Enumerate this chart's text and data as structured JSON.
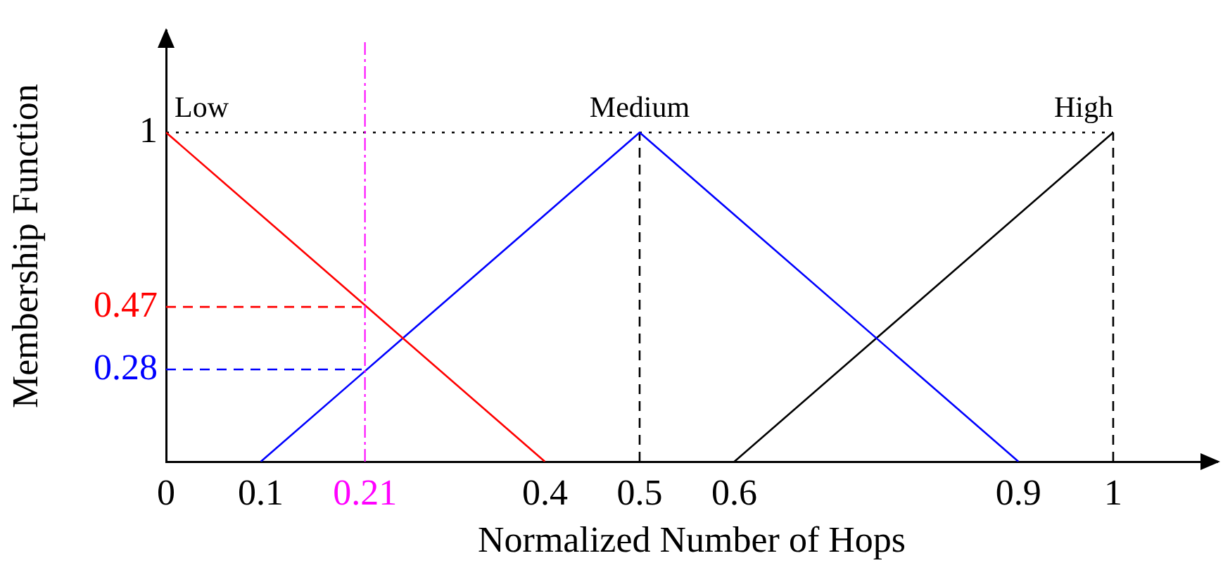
{
  "chart_data": {
    "type": "line",
    "xlabel": "Normalized Number of Hops",
    "ylabel": "Membership Function",
    "series": [
      {
        "name": "Low",
        "color": "#ff0000",
        "x": [
          0,
          0.4
        ],
        "values": [
          1,
          0
        ]
      },
      {
        "name": "Medium",
        "color": "#0000ff",
        "x": [
          0.1,
          0.5,
          0.9
        ],
        "values": [
          0,
          1,
          0
        ]
      },
      {
        "name": "High",
        "color": "#000000",
        "x": [
          0.6,
          1
        ],
        "values": [
          0,
          1
        ]
      },
      {
        "color": "#000000",
        "x": [
          0,
          1
        ],
        "values": [
          1,
          1
        ],
        "line_style": "dotted"
      },
      {
        "color": "#000000",
        "x": [
          0.5,
          0.5
        ],
        "values": [
          0,
          1
        ],
        "line_style": "dashed"
      },
      {
        "color": "#000000",
        "x": [
          1,
          1
        ],
        "values": [
          0,
          1
        ],
        "line_style": "dashed"
      },
      {
        "color": "#ff0000",
        "x": [
          0,
          0.21
        ],
        "values": [
          0.47,
          0.47
        ],
        "line_style": "dashed"
      },
      {
        "color": "#0000ff",
        "x": [
          0,
          0.21
        ],
        "values": [
          0.28,
          0.28
        ],
        "line_style": "dashed"
      }
    ],
    "ref_lines": [
      {
        "axis": "x",
        "value": 0.21,
        "color": "#ff00ff",
        "line_style": "dashed"
      }
    ],
    "xlim": [
      0,
      1.11
    ],
    "ylim": [
      0,
      1.31
    ],
    "xticks": [
      0,
      0.1,
      0.21,
      0.4,
      0.5,
      0.6,
      0.9,
      1
    ],
    "yticks": [
      0.28,
      0.47,
      1
    ],
    "grid": false,
    "legend": false,
    "marker": "none",
    "line_style": "solid"
  }
}
